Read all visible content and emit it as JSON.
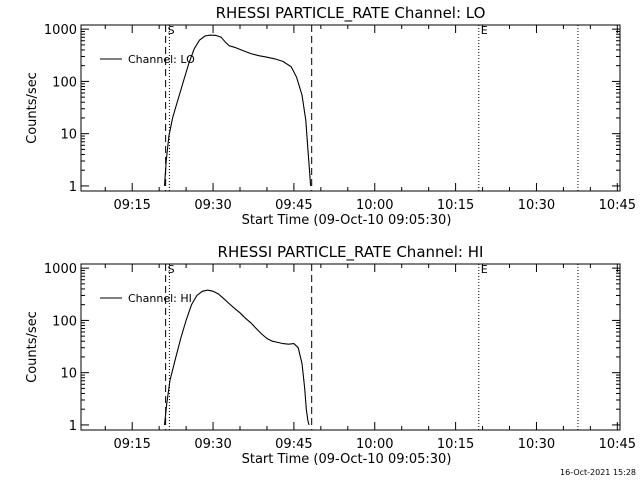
{
  "chart_data": [
    {
      "type": "line",
      "title": "RHESSI PARTICLE_RATE Channel: LO",
      "xlabel": "Start Time (09-Oct-10 09:05:30)",
      "ylabel": "Counts/sec",
      "x_tick_labels": [
        "09:15",
        "09:30",
        "09:45",
        "10:00",
        "10:15",
        "10:30",
        "10:45"
      ],
      "x_tick_minutes": [
        555,
        570,
        585,
        600,
        615,
        630,
        645
      ],
      "xlim_minutes": [
        545.5,
        645.5
      ],
      "y_scale": "log",
      "ylim": [
        0.8,
        1200
      ],
      "y_tick_labels": [
        "1",
        "10",
        "100",
        "1000"
      ],
      "y_tick_values": [
        1,
        10,
        100,
        1000
      ],
      "legend": {
        "label": "Channel: LO",
        "placement": "top-left"
      },
      "flags": [
        "S",
        "E"
      ],
      "vlines": [
        {
          "minute": 561.2,
          "style": "dashed"
        },
        {
          "minute": 561.9,
          "style": "dotted"
        },
        {
          "minute": 588.3,
          "style": "dashed"
        },
        {
          "minute": 619.3,
          "style": "dotted"
        },
        {
          "minute": 637.7,
          "style": "dotted"
        }
      ],
      "flag_positions": [
        561.2,
        619.3
      ],
      "series": [
        {
          "name": "Channel: LO",
          "x_minutes": [
            561.0,
            561.3,
            561.8,
            562.5,
            563.5,
            564.5,
            565.5,
            566.5,
            567.5,
            568.5,
            569.5,
            570.5,
            571.5,
            572.3,
            573.0,
            574.0,
            575.5,
            577.0,
            578.5,
            580.0,
            581.5,
            583.0,
            584.5,
            585.5,
            586.5,
            587.2,
            587.6,
            587.9,
            588.1
          ],
          "values": [
            1,
            3,
            9,
            20,
            45,
            100,
            220,
            420,
            620,
            740,
            770,
            760,
            700,
            560,
            480,
            450,
            390,
            340,
            310,
            290,
            270,
            240,
            190,
            120,
            55,
            18,
            5,
            2,
            1
          ]
        }
      ]
    },
    {
      "type": "line",
      "title": "RHESSI PARTICLE_RATE Channel: HI",
      "xlabel": "Start Time (09-Oct-10 09:05:30)",
      "ylabel": "Counts/sec",
      "x_tick_labels": [
        "09:15",
        "09:30",
        "09:45",
        "10:00",
        "10:15",
        "10:30",
        "10:45"
      ],
      "x_tick_minutes": [
        555,
        570,
        585,
        600,
        615,
        630,
        645
      ],
      "xlim_minutes": [
        545.5,
        645.5
      ],
      "y_scale": "log",
      "ylim": [
        0.8,
        1200
      ],
      "y_tick_labels": [
        "1",
        "10",
        "100",
        "1000"
      ],
      "y_tick_values": [
        1,
        10,
        100,
        1000
      ],
      "legend": {
        "label": "Channel: HI",
        "placement": "top-left"
      },
      "flags": [
        "S",
        "E"
      ],
      "vlines": [
        {
          "minute": 561.2,
          "style": "dashed"
        },
        {
          "minute": 561.9,
          "style": "dotted"
        },
        {
          "minute": 588.3,
          "style": "dashed"
        },
        {
          "minute": 619.3,
          "style": "dotted"
        },
        {
          "minute": 637.7,
          "style": "dotted"
        }
      ],
      "flag_positions": [
        561.2,
        619.3
      ],
      "series": [
        {
          "name": "Channel: HI",
          "x_minutes": [
            561.0,
            561.4,
            562.0,
            563.0,
            564.0,
            565.0,
            566.0,
            567.0,
            568.0,
            569.0,
            570.0,
            571.0,
            572.0,
            573.0,
            574.0,
            575.0,
            576.0,
            577.0,
            578.0,
            579.0,
            580.0,
            581.0,
            582.0,
            583.0,
            584.0,
            585.0,
            585.8,
            586.5,
            587.0,
            587.3,
            587.6,
            587.8
          ],
          "values": [
            1,
            2.5,
            7,
            18,
            45,
            100,
            200,
            300,
            360,
            380,
            360,
            320,
            260,
            210,
            170,
            140,
            110,
            90,
            70,
            55,
            45,
            40,
            38,
            36,
            35,
            36,
            30,
            15,
            5,
            2,
            1.2,
            1
          ]
        }
      ]
    }
  ],
  "footer": {
    "timestamp": "16-Oct-2021 15:28"
  }
}
